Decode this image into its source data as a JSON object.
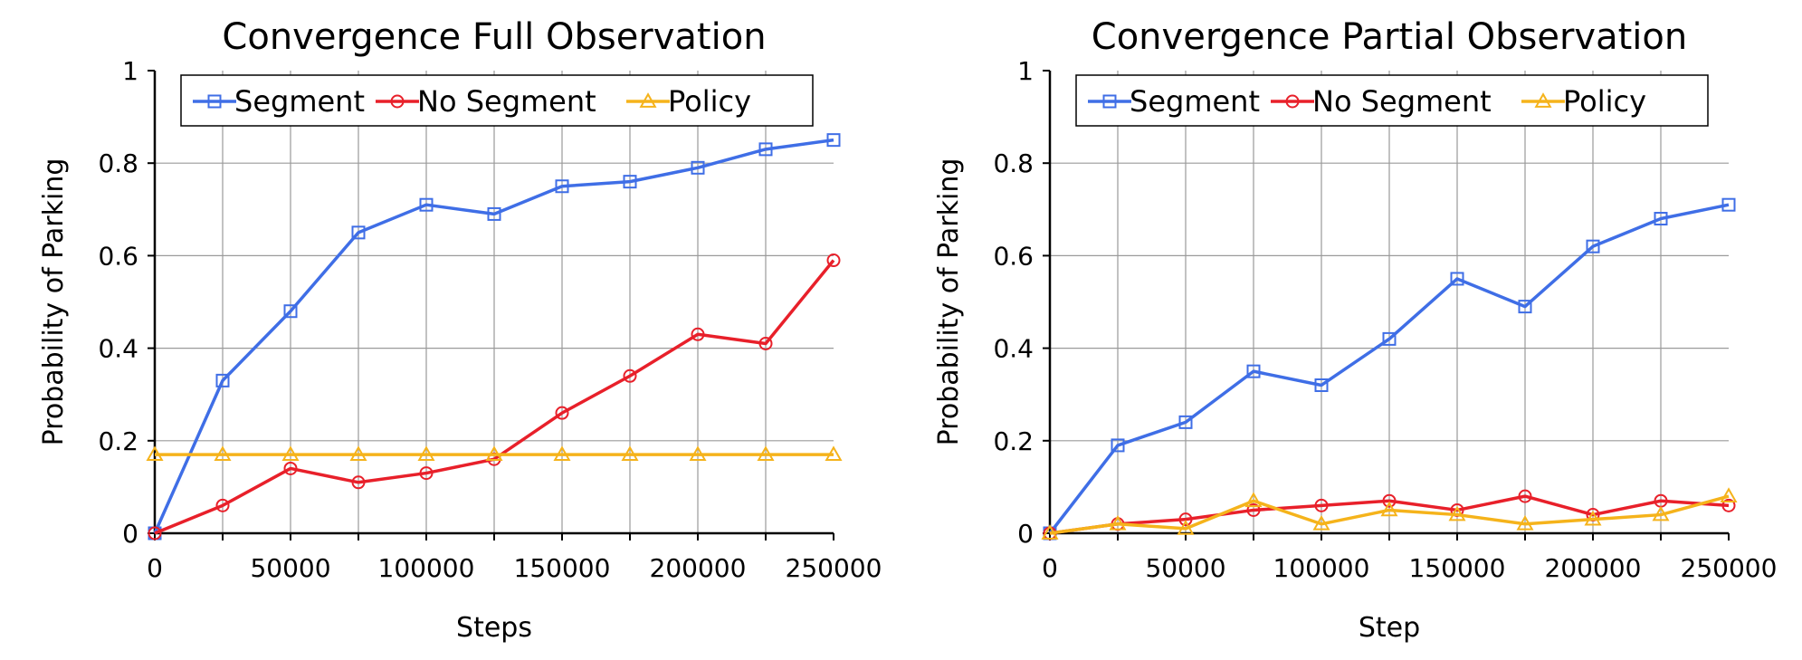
{
  "chart_data": [
    {
      "type": "line",
      "title": "Convergence Full Observation",
      "xlabel": "Steps",
      "ylabel": "Probability of Parking",
      "xlim": [
        0,
        250000
      ],
      "ylim": [
        0,
        1
      ],
      "xticks": [
        "0",
        "50000",
        "100000",
        "150000",
        "200000",
        "250000"
      ],
      "yticks": [
        "0",
        "0.2",
        "0.4",
        "0.6",
        "0.8",
        "1"
      ],
      "grid": true,
      "legend_position": "top",
      "x": [
        0,
        25000,
        50000,
        75000,
        100000,
        125000,
        150000,
        175000,
        200000,
        225000,
        250000
      ],
      "series": [
        {
          "name": "Segment",
          "color": "#3f6ee6",
          "marker": "square",
          "values": [
            0.0,
            0.33,
            0.48,
            0.65,
            0.71,
            0.69,
            0.75,
            0.76,
            0.79,
            0.83,
            0.85
          ]
        },
        {
          "name": "No Segment",
          "color": "#e8202a",
          "marker": "circle",
          "values": [
            0.0,
            0.06,
            0.14,
            0.11,
            0.13,
            0.16,
            0.26,
            0.34,
            0.43,
            0.41,
            0.59
          ]
        },
        {
          "name": "Policy",
          "color": "#f5b31b",
          "marker": "triangle",
          "values": [
            0.17,
            0.17,
            0.17,
            0.17,
            0.17,
            0.17,
            0.17,
            0.17,
            0.17,
            0.17,
            0.17
          ]
        }
      ]
    },
    {
      "type": "line",
      "title": "Convergence Partial Observation",
      "xlabel": "Step",
      "ylabel": "Probability of Parking",
      "xlim": [
        0,
        250000
      ],
      "ylim": [
        0,
        1
      ],
      "xticks": [
        "0",
        "50000",
        "100000",
        "150000",
        "200000",
        "250000"
      ],
      "yticks": [
        "0",
        "0.2",
        "0.4",
        "0.6",
        "0.8",
        "1"
      ],
      "grid": true,
      "legend_position": "top",
      "x": [
        0,
        25000,
        50000,
        75000,
        100000,
        125000,
        150000,
        175000,
        200000,
        225000,
        250000
      ],
      "series": [
        {
          "name": "Segment",
          "color": "#3f6ee6",
          "marker": "square",
          "values": [
            0.0,
            0.19,
            0.24,
            0.35,
            0.32,
            0.42,
            0.55,
            0.49,
            0.62,
            0.68,
            0.71
          ]
        },
        {
          "name": "No Segment",
          "color": "#e8202a",
          "marker": "circle",
          "values": [
            0.0,
            0.02,
            0.03,
            0.05,
            0.06,
            0.07,
            0.05,
            0.08,
            0.04,
            0.07,
            0.06
          ]
        },
        {
          "name": "Policy",
          "color": "#f5b31b",
          "marker": "triangle",
          "values": [
            0.0,
            0.02,
            0.01,
            0.07,
            0.02,
            0.05,
            0.04,
            0.02,
            0.03,
            0.04,
            0.08
          ]
        }
      ]
    }
  ]
}
